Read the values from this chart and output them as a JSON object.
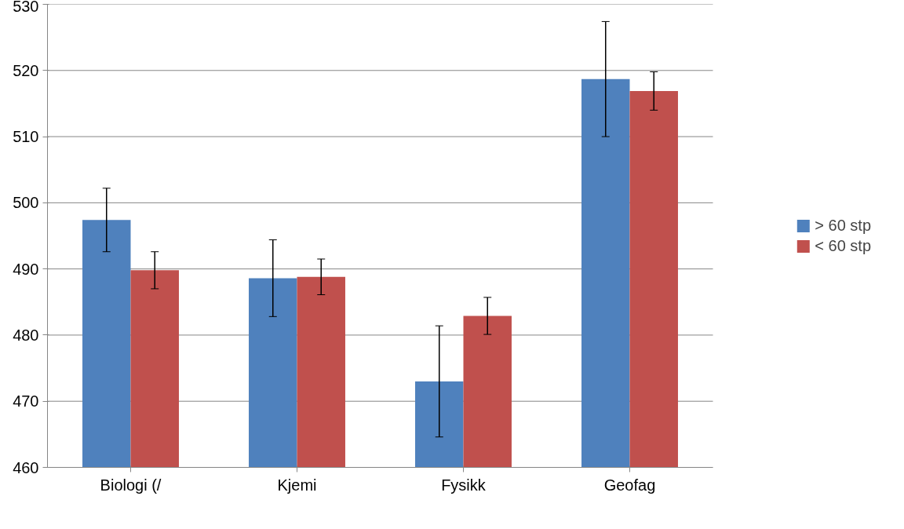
{
  "chart_data": {
    "type": "bar",
    "categories": [
      "Biologi (/",
      "Kjemi",
      "Fysikk",
      "Geofag"
    ],
    "series": [
      {
        "name": "> 60 stp",
        "color": "#4f81bd",
        "values": [
          497.4,
          488.6,
          473.0,
          518.7
        ],
        "errors": [
          4.8,
          5.8,
          8.4,
          8.7
        ]
      },
      {
        "name": "< 60 stp",
        "color": "#c0504d",
        "values": [
          489.8,
          488.8,
          482.9,
          516.9
        ],
        "errors": [
          2.8,
          2.7,
          2.8,
          2.9
        ]
      }
    ],
    "ylim": [
      460,
      530
    ],
    "yticks": [
      460,
      470,
      480,
      490,
      500,
      510,
      520,
      530
    ],
    "grid": "y",
    "legend": "right"
  }
}
